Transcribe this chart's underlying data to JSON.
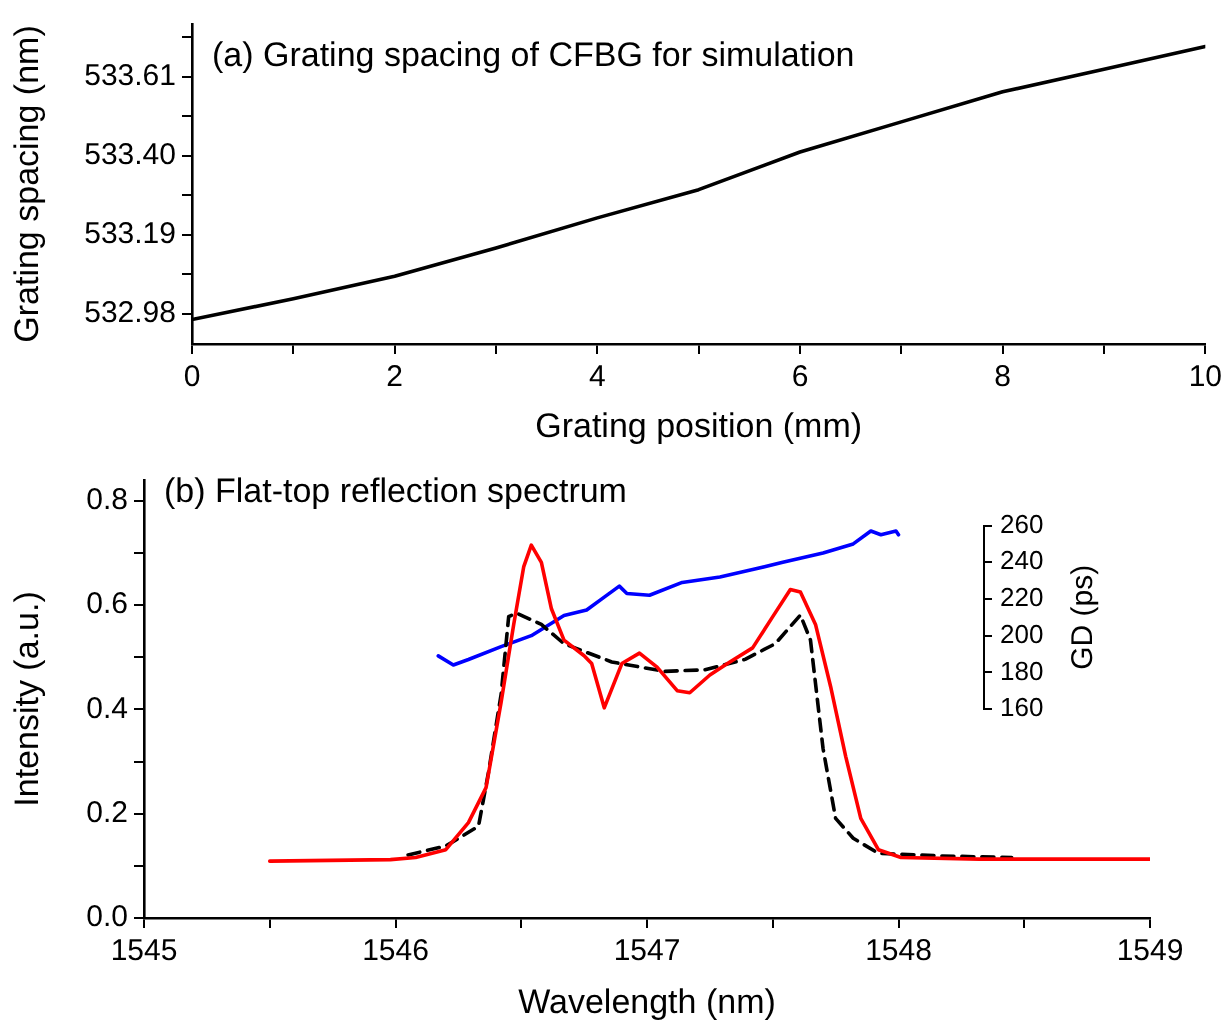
{
  "chart_data": [
    {
      "type": "line",
      "title": "(a) Grating spacing of CFBG for simulation",
      "xlabel": "Grating position (mm)",
      "ylabel": "Grating spacing (nm)",
      "xlim": [
        0,
        10
      ],
      "xticks": [
        0,
        {
          "value": 1,
          "label": null
        },
        2,
        {
          "value": 3,
          "label": null
        },
        4,
        {
          "value": 5,
          "label": null
        },
        6,
        {
          "value": 7,
          "label": null
        },
        8,
        {
          "value": 9,
          "label": null
        },
        10
      ],
      "ylim": [
        532.9,
        533.75
      ],
      "yticks": [
        532.98,
        {
          "value": 533.085,
          "label": null
        },
        533.19,
        {
          "value": 533.295,
          "label": null
        },
        {
          "value": 533.4,
          "label": "533.40"
        },
        {
          "value": 533.505,
          "label": null
        },
        533.61,
        {
          "value": 533.715,
          "label": null
        }
      ],
      "marker": "none",
      "legend": false,
      "grid": false,
      "series": [
        {
          "color": "#000000",
          "x": [
            0,
            1,
            2,
            3,
            4,
            5,
            6,
            7,
            8,
            9,
            10
          ],
          "values": [
            532.965,
            533.02,
            533.08,
            533.155,
            533.235,
            533.31,
            533.41,
            533.49,
            533.57,
            533.63,
            533.69
          ]
        }
      ]
    },
    {
      "type": "line",
      "title": "(b) Flat-top reflection spectrum",
      "xlabel": "Wavelength (nm)",
      "ylabel": "Intensity (a.u.)",
      "y2label": "GD (ps)",
      "xlim": [
        1545,
        1549
      ],
      "xticks": [
        1545,
        {
          "value": 1545.5,
          "label": null
        },
        1546,
        {
          "value": 1546.5,
          "label": null
        },
        1547,
        {
          "value": 1547.5,
          "label": null
        },
        1548,
        {
          "value": 1548.5,
          "label": null
        },
        1549
      ],
      "ylim": [
        0,
        0.84
      ],
      "yticks": [
        {
          "value": 0,
          "label": "0.0"
        },
        {
          "value": 0.1,
          "label": null
        },
        0.2,
        {
          "value": 0.3,
          "label": null
        },
        0.4,
        {
          "value": 0.5,
          "label": null
        },
        0.6,
        {
          "value": 0.7,
          "label": null
        },
        0.8
      ],
      "y2lim": [
        160,
        260
      ],
      "y2ticks": [
        160,
        180,
        200,
        220,
        240,
        260
      ],
      "marker": "none",
      "legend": false,
      "grid": false,
      "series": [
        {
          "color": "#ff0000",
          "x": [
            1545.5,
            1545.98,
            1546.08,
            1546.2,
            1546.29,
            1546.36,
            1546.42,
            1546.47,
            1546.51,
            1546.54,
            1546.58,
            1546.62,
            1546.67,
            1546.75,
            1546.78,
            1546.83,
            1546.9,
            1546.97,
            1547.04,
            1547.12,
            1547.17,
            1547.25,
            1547.32,
            1547.42,
            1547.5,
            1547.57,
            1547.61,
            1547.67,
            1547.73,
            1547.79,
            1547.85,
            1547.92,
            1548.01,
            1548.32,
            1549
          ],
          "values": [
            0.109,
            0.112,
            0.116,
            0.131,
            0.183,
            0.25,
            0.414,
            0.563,
            0.674,
            0.715,
            0.682,
            0.593,
            0.533,
            0.503,
            0.488,
            0.403,
            0.488,
            0.508,
            0.481,
            0.436,
            0.432,
            0.466,
            0.488,
            0.518,
            0.578,
            0.63,
            0.625,
            0.563,
            0.444,
            0.31,
            0.191,
            0.131,
            0.116,
            0.113,
            0.113
          ]
        },
        {
          "color": "#000000",
          "line_style": "dashed",
          "x": [
            1546.05,
            1546.2,
            1546.33,
            1546.37,
            1546.42,
            1546.45,
            1546.48,
            1546.58,
            1546.67,
            1546.86,
            1547.07,
            1547.23,
            1547.39,
            1547.51,
            1547.61,
            1547.65,
            1547.7,
            1547.75,
            1547.82,
            1547.92,
            1548.17,
            1548.45
          ],
          "values": [
            0.121,
            0.138,
            0.176,
            0.28,
            0.429,
            0.578,
            0.585,
            0.563,
            0.526,
            0.491,
            0.473,
            0.476,
            0.496,
            0.526,
            0.581,
            0.533,
            0.325,
            0.191,
            0.153,
            0.124,
            0.119,
            0.116
          ]
        },
        {
          "color": "#0000ff",
          "axis": "y2",
          "x": [
            1546.17,
            1546.23,
            1546.29,
            1546.42,
            1546.54,
            1546.67,
            1546.76,
            1546.83,
            1546.89,
            1546.92,
            1547.01,
            1547.14,
            1547.29,
            1547.42,
            1547.54,
            1547.7,
            1547.82,
            1547.89,
            1547.93,
            1547.99,
            1548.0
          ],
          "values": [
            189,
            184,
            187,
            194,
            200,
            211,
            214,
            221,
            227,
            223,
            222,
            229,
            232,
            236,
            240,
            245,
            250,
            257,
            255,
            257,
            255
          ]
        }
      ]
    }
  ]
}
